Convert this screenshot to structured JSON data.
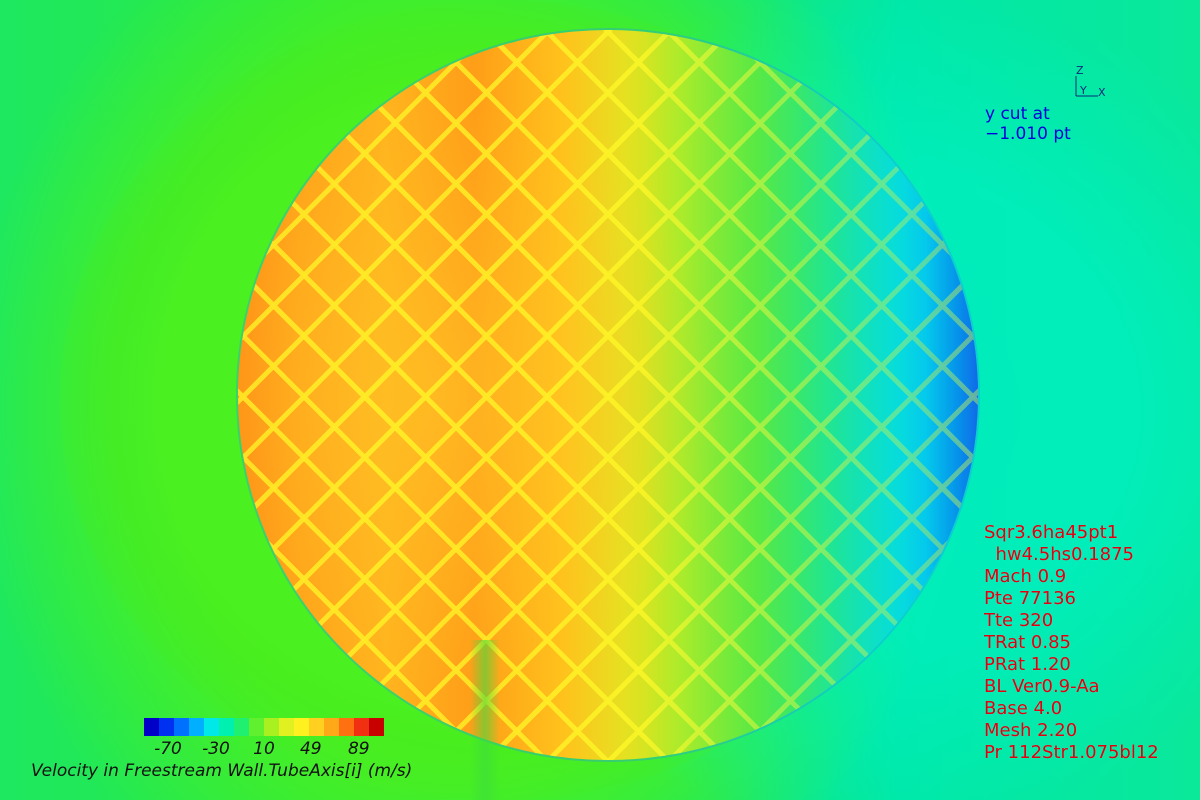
{
  "plot": {
    "cut_label_line1": "y cut at",
    "cut_label_line2": "−1.010 pt",
    "colors": {
      "background": "#2bea40",
      "disc_hot": "#ff9a16",
      "mesh_lines": "#fff828",
      "cold_edge": "#1f40e0"
    }
  },
  "triad": {
    "z_label": "Z",
    "y_label": "Y",
    "x_label": "X"
  },
  "params": {
    "lines": [
      "Sqr3.6ha45pt1",
      "  hw4.5hs0.1875",
      "Mach 0.9",
      "Pte 77136",
      "Tte 320",
      "TRat 0.85",
      "PRat 1.20",
      "BL Ver0.9-Aa",
      "Base 4.0",
      "Mesh 2.20",
      "Pr 112Str1.075bl12"
    ]
  },
  "colorbar": {
    "title": "Velocity in Freestream Wall.TubeAxis[i] (m/s)",
    "tick_labels": [
      "-70",
      "-30",
      "10",
      "49",
      "89"
    ],
    "tick_values": [
      -70,
      -30,
      10,
      49,
      89
    ],
    "range": [
      -90,
      110
    ],
    "colors": [
      "#0000c8",
      "#0030f0",
      "#0070ff",
      "#00b0ff",
      "#00e8e8",
      "#00f0b0",
      "#20f070",
      "#60f030",
      "#a8f020",
      "#e0f020",
      "#fff020",
      "#ffd020",
      "#ffa818",
      "#ff7010",
      "#f03010",
      "#c80000"
    ]
  }
}
